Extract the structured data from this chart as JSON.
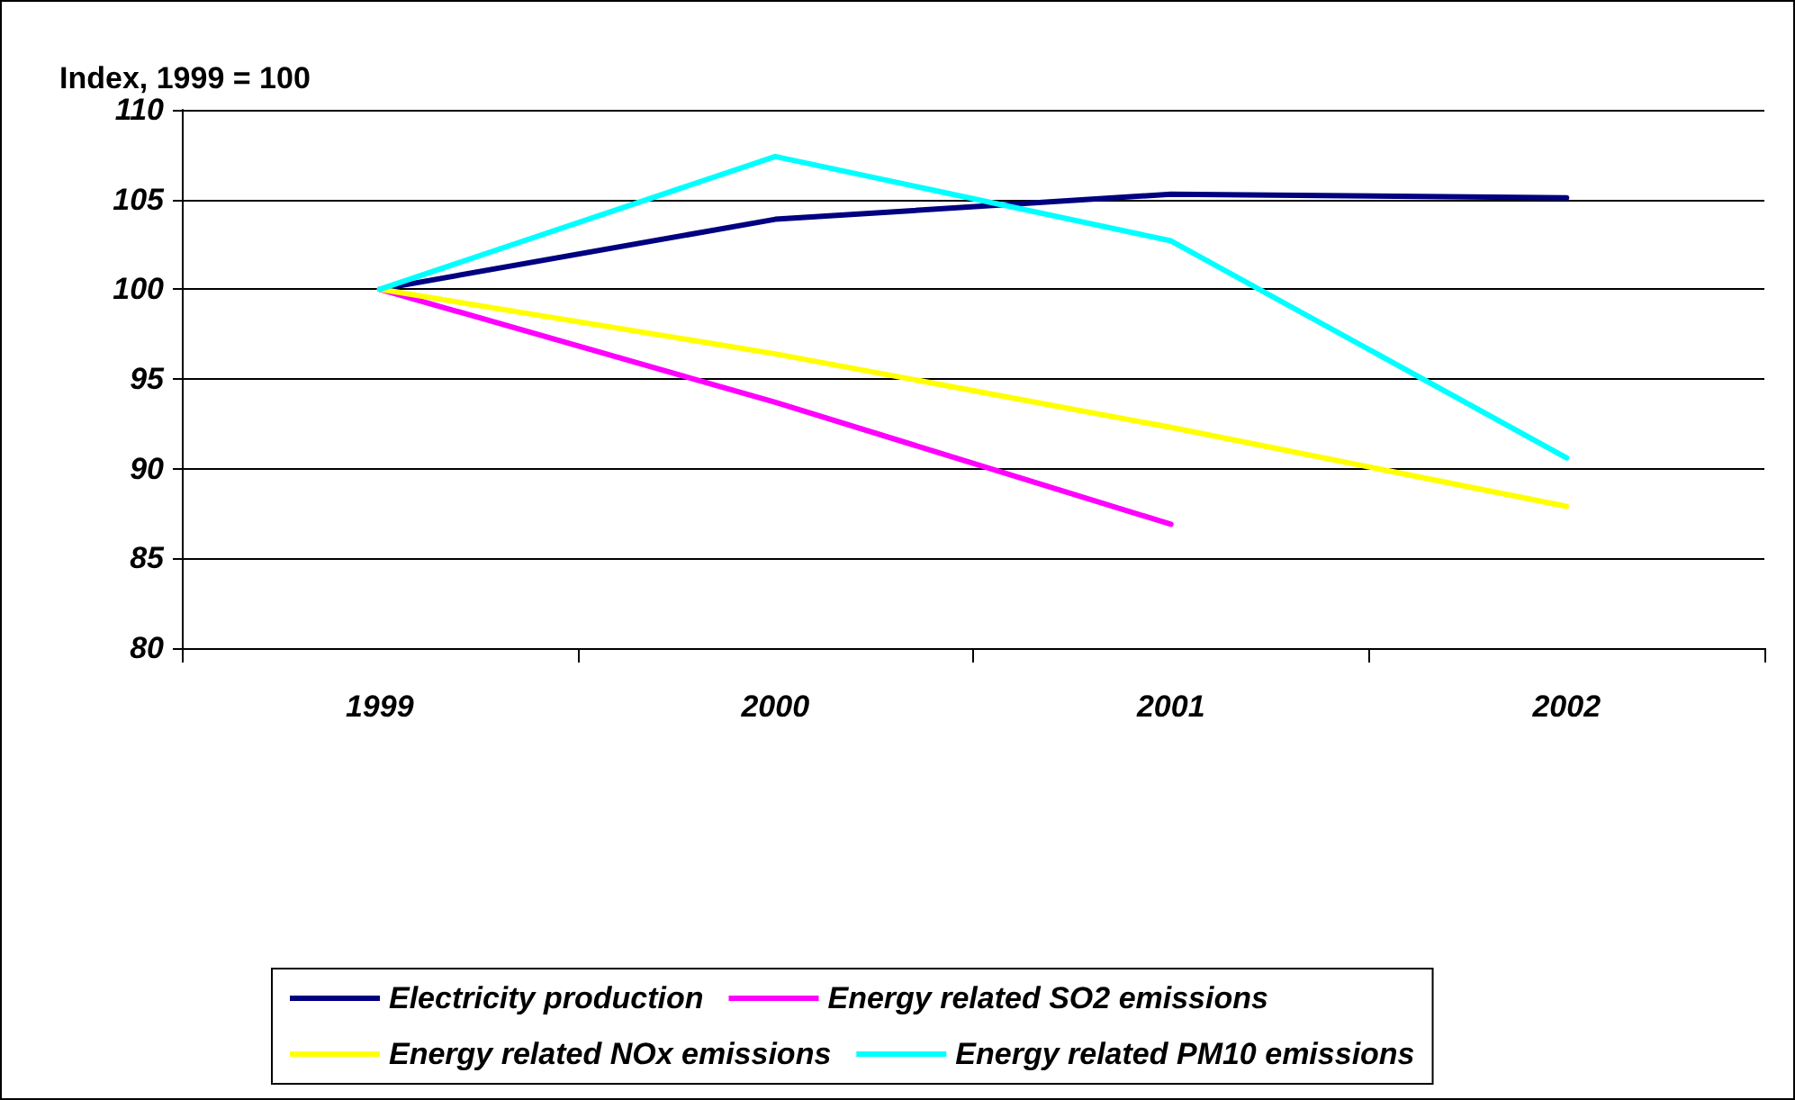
{
  "chart_data": {
    "type": "line",
    "ylabel": "Index, 1999 = 100",
    "categories": [
      "1999",
      "2000",
      "2001",
      "2002"
    ],
    "series": [
      {
        "name": "Electricity production",
        "color": "#000080",
        "values": [
          100,
          103.9,
          105.3,
          105.1
        ]
      },
      {
        "name": "Energy related SO2 emissions",
        "color": "#ff00ff",
        "values": [
          100,
          93.7,
          86.9,
          null
        ]
      },
      {
        "name": "Energy related NOx emissions",
        "color": "#ffff00",
        "values": [
          100,
          96.4,
          92.3,
          87.9
        ]
      },
      {
        "name": "Energy related PM10 emissions",
        "color": "#00ffff",
        "values": [
          100,
          107.4,
          102.7,
          90.6
        ]
      }
    ],
    "ylim": [
      80,
      110
    ],
    "yticks": [
      80,
      85,
      90,
      95,
      100,
      105,
      110
    ],
    "grid": "y",
    "legend": "bottom",
    "marker": "none",
    "line_style": "solid"
  }
}
